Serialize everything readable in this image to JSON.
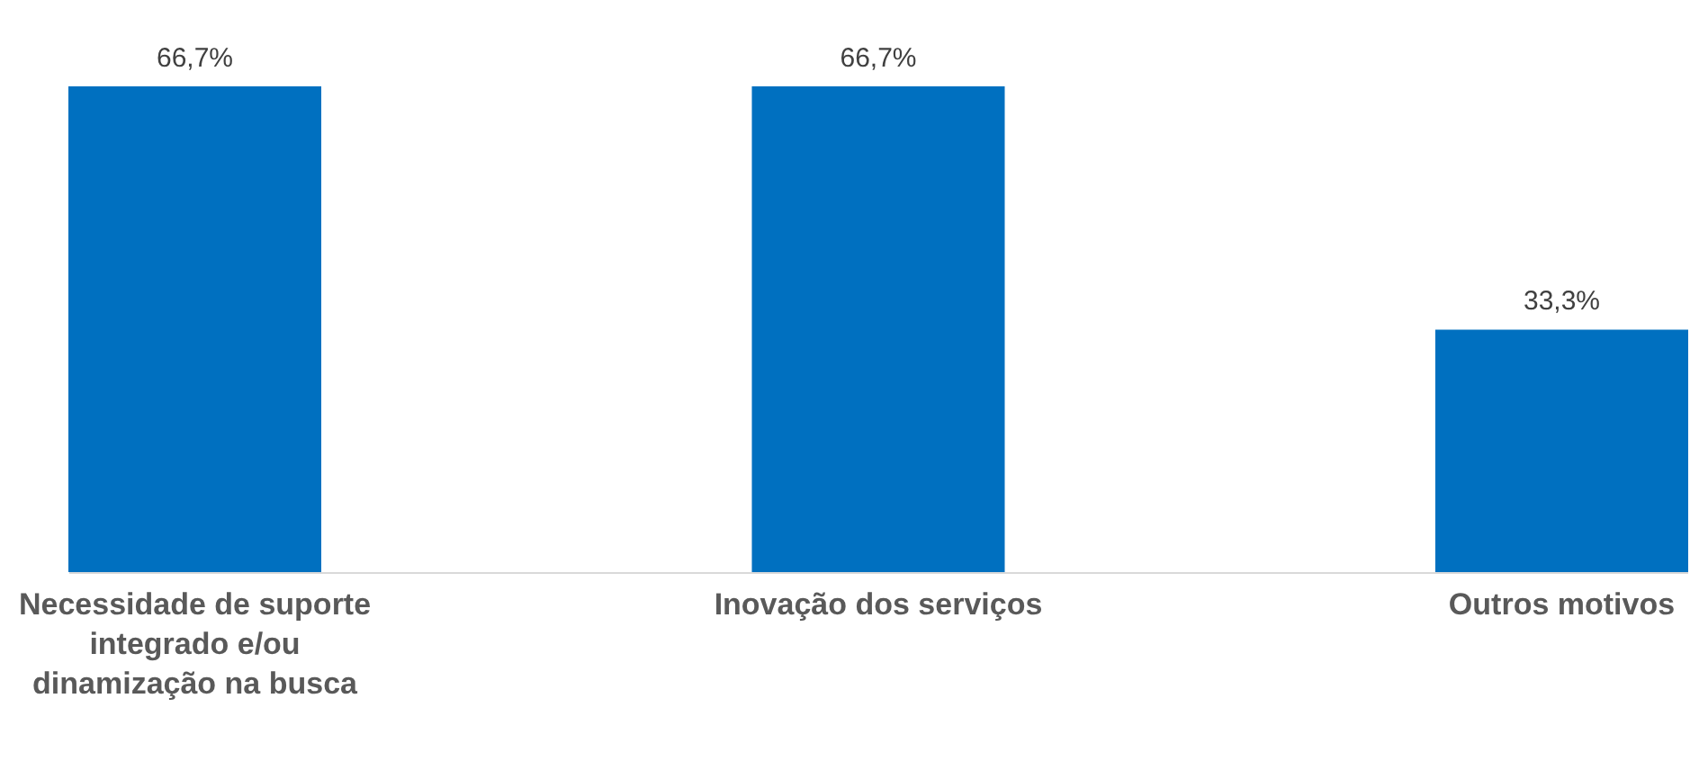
{
  "chart_data": {
    "type": "bar",
    "categories": [
      "Necessidade de suporte integrado e/ou dinamização na busca",
      "Inovação dos serviços",
      "Outros motivos"
    ],
    "values": [
      66.7,
      66.7,
      33.3
    ],
    "value_labels": [
      "66,7%",
      "66,7%",
      "33,3%"
    ],
    "color": "#0070c0",
    "grid": false,
    "legend": false
  }
}
